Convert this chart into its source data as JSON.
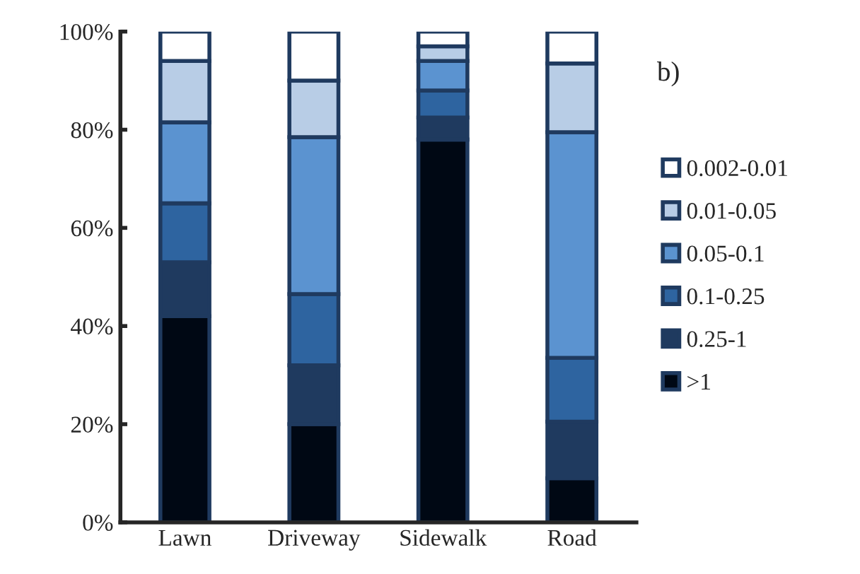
{
  "chart_data": {
    "type": "bar",
    "stacked": true,
    "categories": [
      "Lawn",
      "Driveway",
      "Sidewalk",
      "Road"
    ],
    "series": [
      {
        "name": ">1",
        "color": "#000814",
        "values": [
          42,
          20,
          78,
          9
        ]
      },
      {
        "name": "0.25-1",
        "color": "#1f3a5f",
        "values": [
          11,
          12,
          4.5,
          11.5
        ]
      },
      {
        "name": "0.1-0.25",
        "color": "#2e64a0",
        "values": [
          12,
          14.5,
          5.5,
          13
        ]
      },
      {
        "name": "0.05-0.1",
        "color": "#5b93d0",
        "values": [
          16.5,
          32,
          6,
          46
        ]
      },
      {
        "name": "0.01-0.05",
        "color": "#b8cde6",
        "values": [
          12.5,
          11.5,
          3,
          14
        ]
      },
      {
        "name": "0.002-0.01",
        "color": "#ffffff",
        "values": [
          6,
          10,
          3,
          6.5
        ]
      }
    ],
    "ylim": [
      0,
      100
    ],
    "yticks": [
      {
        "value": 0,
        "label": "0%"
      },
      {
        "value": 20,
        "label": "20%"
      },
      {
        "value": 40,
        "label": "40%"
      },
      {
        "value": 60,
        "label": "60%"
      },
      {
        "value": 80,
        "label": "80%"
      },
      {
        "value": 100,
        "label": "100%"
      }
    ],
    "annotations": [
      "b)"
    ],
    "legend": "right",
    "grid": false
  }
}
